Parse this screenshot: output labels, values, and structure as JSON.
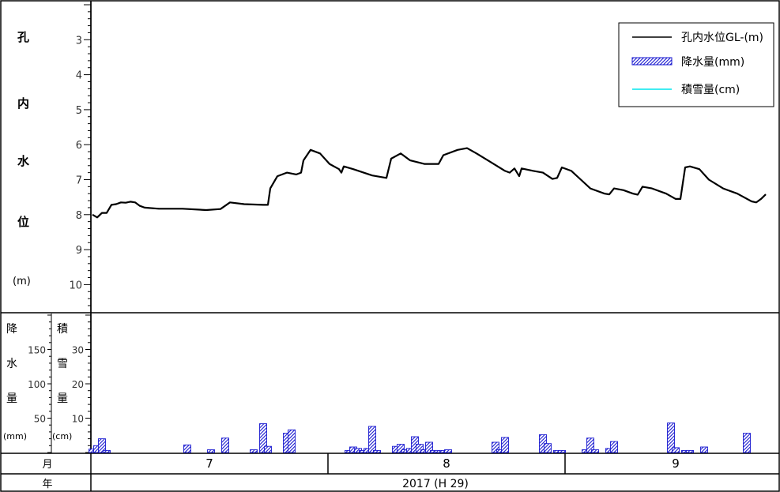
{
  "chart_data": [
    {
      "type": "line",
      "ylabel_chars": [
        "孔",
        "内",
        "水",
        "位",
        "(m)"
      ],
      "ylim": [
        2,
        11
      ],
      "yaxis_reversed": true,
      "yticks": [
        3,
        4,
        5,
        6,
        7,
        8,
        9,
        10
      ],
      "x_day_range": [
        1,
        92
      ],
      "series": [
        {
          "name": "孔内水位GL-(m)",
          "color": "#000000",
          "points": [
            [
              1,
              8.0
            ],
            [
              2,
              8.08
            ],
            [
              3,
              7.95
            ],
            [
              4,
              7.95
            ],
            [
              5,
              7.72
            ],
            [
              6,
              7.7
            ],
            [
              7,
              7.65
            ],
            [
              8,
              7.66
            ],
            [
              9,
              7.63
            ],
            [
              10,
              7.65
            ],
            [
              11,
              7.75
            ],
            [
              12,
              7.8
            ],
            [
              15,
              7.83
            ],
            [
              20,
              7.83
            ],
            [
              25,
              7.87
            ],
            [
              28,
              7.84
            ],
            [
              30,
              7.65
            ],
            [
              33,
              7.7
            ],
            [
              37,
              7.72
            ],
            [
              38,
              7.72
            ],
            [
              38.5,
              7.25
            ],
            [
              40,
              6.9
            ],
            [
              42,
              6.8
            ],
            [
              44,
              6.85
            ],
            [
              45,
              6.8
            ],
            [
              45.5,
              6.45
            ],
            [
              47,
              6.15
            ],
            [
              49,
              6.25
            ],
            [
              51,
              6.55
            ],
            [
              53,
              6.7
            ],
            [
              53.5,
              6.8
            ],
            [
              54,
              6.62
            ],
            [
              56,
              6.7
            ],
            [
              60,
              6.88
            ],
            [
              63,
              6.95
            ],
            [
              64,
              6.4
            ],
            [
              66,
              6.25
            ],
            [
              68,
              6.45
            ],
            [
              71,
              6.55
            ],
            [
              74,
              6.55
            ],
            [
              75,
              6.3
            ],
            [
              78,
              6.15
            ],
            [
              80,
              6.1
            ],
            [
              82,
              6.25
            ],
            [
              85,
              6.5
            ],
            [
              88,
              6.75
            ],
            [
              89,
              6.8
            ],
            [
              90,
              6.68
            ],
            [
              91,
              6.9
            ],
            [
              91.5,
              6.68
            ],
            [
              94,
              6.75
            ],
            [
              96,
              6.8
            ],
            [
              98,
              6.98
            ],
            [
              99,
              6.95
            ],
            [
              100,
              6.65
            ],
            [
              102,
              6.75
            ],
            [
              104,
              7.0
            ],
            [
              106,
              7.25
            ],
            [
              109,
              7.4
            ],
            [
              110,
              7.42
            ],
            [
              111,
              7.25
            ],
            [
              113,
              7.3
            ],
            [
              115,
              7.4
            ],
            [
              116,
              7.43
            ],
            [
              117,
              7.2
            ],
            [
              119,
              7.25
            ],
            [
              122,
              7.4
            ],
            [
              124,
              7.55
            ],
            [
              125,
              7.55
            ],
            [
              126,
              6.65
            ],
            [
              127,
              6.62
            ],
            [
              129,
              6.7
            ],
            [
              131,
              7.0
            ],
            [
              134,
              7.25
            ],
            [
              137,
              7.4
            ],
            [
              140,
              7.62
            ],
            [
              141,
              7.65
            ],
            [
              142,
              7.55
            ],
            [
              143,
              7.42
            ]
          ]
        }
      ],
      "legend": {
        "placement": "top-right",
        "items": [
          {
            "label": "孔内水位GL-(m)",
            "kind": "line",
            "color": "#000000"
          },
          {
            "label": "降水量(mm)",
            "kind": "hatched-bar",
            "color": "#0000cc"
          },
          {
            "label": "積雪量(cm)",
            "kind": "line",
            "color": "#00e5ee"
          }
        ]
      }
    },
    {
      "type": "bar",
      "y1": {
        "label_chars": [
          "降",
          "水",
          "量",
          "(mm)"
        ],
        "ticks": [
          50,
          100,
          150
        ],
        "ylim": [
          0,
          175
        ]
      },
      "y2": {
        "label_chars": [
          "積",
          "雪",
          "量",
          "(cm)"
        ],
        "ticks": [
          10,
          20,
          30
        ],
        "ylim": [
          0,
          35
        ]
      },
      "series": [
        {
          "name": "降水量(mm)",
          "color": "#0000cc",
          "points": [
            [
              1,
              5
            ],
            [
              2,
              10
            ],
            [
              3,
              20
            ],
            [
              4,
              3
            ],
            [
              21,
              11
            ],
            [
              26,
              4
            ],
            [
              29,
              21
            ],
            [
              35,
              4
            ],
            [
              37,
              42
            ],
            [
              38,
              9
            ],
            [
              42,
              28
            ],
            [
              43,
              33
            ],
            [
              55,
              3
            ],
            [
              56,
              8
            ],
            [
              57,
              6
            ],
            [
              58,
              3
            ],
            [
              59,
              6
            ],
            [
              60,
              38
            ],
            [
              61,
              3
            ],
            [
              65,
              9
            ],
            [
              66,
              12
            ],
            [
              67,
              4
            ],
            [
              68,
              6
            ],
            [
              69,
              23
            ],
            [
              70,
              12
            ],
            [
              71,
              4
            ],
            [
              72,
              15
            ],
            [
              73,
              3
            ],
            [
              74,
              3
            ],
            [
              75,
              3
            ],
            [
              76,
              4
            ],
            [
              86,
              15
            ],
            [
              87,
              4
            ],
            [
              88,
              22
            ],
            [
              96,
              26
            ],
            [
              97,
              13
            ],
            [
              99,
              3
            ],
            [
              100,
              3
            ],
            [
              105,
              4
            ],
            [
              106,
              21
            ],
            [
              107,
              4
            ],
            [
              110,
              6
            ],
            [
              111,
              16
            ],
            [
              123,
              43
            ],
            [
              124,
              7
            ],
            [
              126,
              3
            ],
            [
              127,
              3
            ],
            [
              130,
              8
            ],
            [
              139,
              28
            ]
          ]
        }
      ]
    }
  ],
  "month_row": {
    "label": "月",
    "months": [
      "7",
      "8",
      "9"
    ]
  },
  "year_row": {
    "label": "年",
    "value": "2017 (H 29)"
  }
}
